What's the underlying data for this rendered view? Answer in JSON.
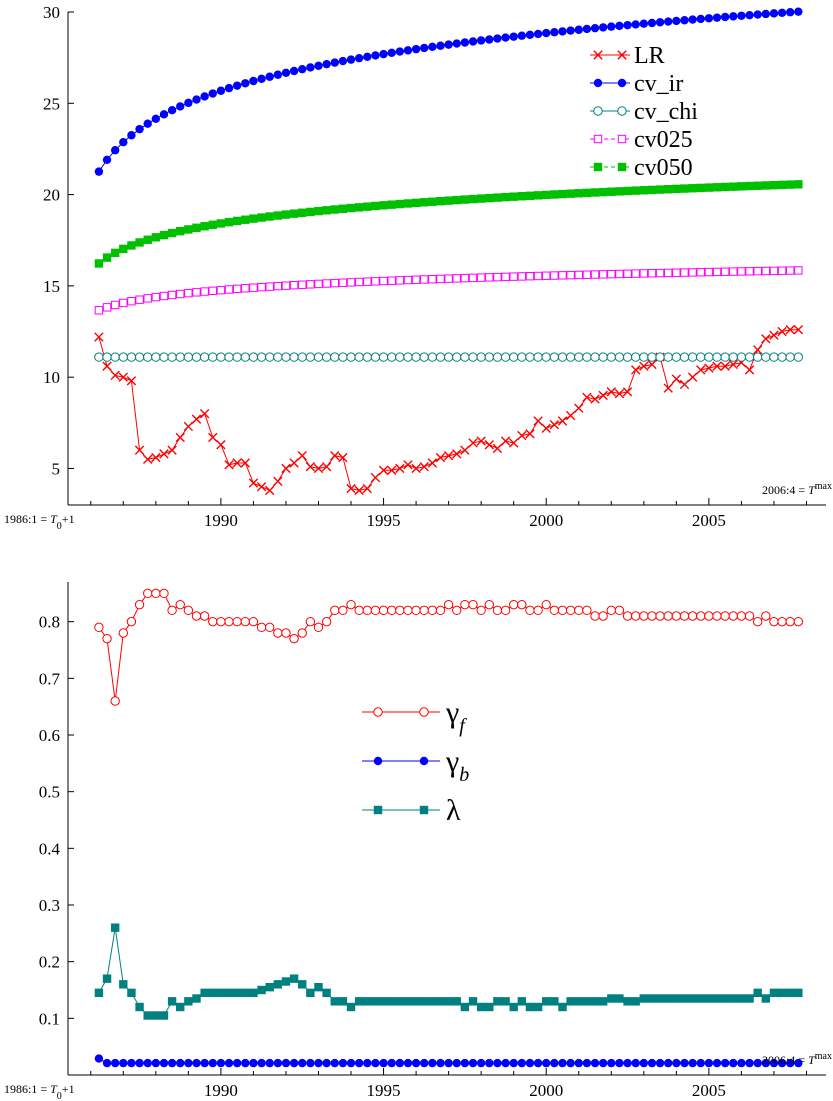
{
  "chart_data": [
    {
      "type": "line",
      "title": "",
      "xlabel": "",
      "ylabel": "",
      "xlim": [
        1985.3,
        2008.6
      ],
      "ylim": [
        3,
        30
      ],
      "yticks": [
        "5",
        "10",
        "15",
        "20",
        "25",
        "30"
      ],
      "xticks": [
        "1990",
        "1995",
        "2000",
        "2005"
      ],
      "annotations": {
        "start": {
          "pre": "1986:1 = ",
          "T": "T",
          "sub": "0",
          "post": "+1"
        },
        "end": {
          "pre": "2006:4 = ",
          "T": "T",
          "sup": "max"
        }
      },
      "legend_position": "top-right",
      "x": {
        "start": 1986.25,
        "step": 0.25,
        "count": 87
      },
      "series": [
        {
          "name": "LR",
          "color": "#ff0000",
          "marker": "x",
          "line": "solid",
          "values": [
            12.2,
            10.6,
            10.1,
            10.0,
            9.8,
            6.0,
            5.5,
            5.6,
            5.8,
            6.0,
            6.7,
            7.3,
            7.7,
            8.0,
            6.7,
            6.3,
            5.2,
            5.3,
            5.3,
            4.2,
            4.0,
            3.8,
            4.3,
            5.0,
            5.3,
            5.7,
            5.1,
            5.0,
            5.1,
            5.7,
            5.6,
            3.9,
            3.8,
            3.9,
            4.5,
            4.9,
            4.9,
            5.0,
            5.2,
            5.0,
            5.1,
            5.3,
            5.6,
            5.7,
            5.8,
            6.0,
            6.4,
            6.5,
            6.3,
            6.1,
            6.5,
            6.4,
            6.8,
            6.9,
            7.6,
            7.2,
            7.4,
            7.6,
            7.9,
            8.3,
            8.9,
            8.8,
            9.0,
            9.2,
            9.1,
            9.2,
            10.4,
            10.6,
            10.7,
            11.1,
            9.4,
            9.9,
            9.6,
            10.0,
            10.4,
            10.5,
            10.6,
            10.6,
            10.7,
            10.8,
            10.4,
            11.5,
            12.1,
            12.3,
            12.5,
            12.6,
            12.6
          ]
        },
        {
          "name": "cv_ir",
          "color": "#0000ff",
          "marker": "filled-circle",
          "line": "solid",
          "curve": {
            "form": "a + b*ln(x - c)",
            "a": 21.4,
            "b": 2.77,
            "c": 1985.3
          }
        },
        {
          "name": "cv_chi",
          "color": "#008080",
          "marker": "open-circle",
          "line": "solid",
          "constant": 11.1
        },
        {
          "name": "cv025",
          "color": "#ff00ff",
          "marker": "open-square",
          "line": "dashed",
          "curve": {
            "form": "a + b*ln(x - c)",
            "a": 13.7,
            "b": 0.69,
            "c": 1985.3
          }
        },
        {
          "name": "cv050",
          "color": "#00c000",
          "marker": "filled-square",
          "line": "dashed",
          "curve": {
            "form": "a + b*ln(x - c)",
            "a": 16.3,
            "b": 1.37,
            "c": 1985.3
          }
        }
      ]
    },
    {
      "type": "line",
      "title": "",
      "xlabel": "",
      "ylabel": "",
      "xlim": [
        1985.3,
        2008.6
      ],
      "ylim": [
        0.0,
        0.87
      ],
      "yticks": [
        "0.1",
        "0.2",
        "0.3",
        "0.4",
        "0.5",
        "0.6",
        "0.7",
        "0.8"
      ],
      "xticks": [
        "1990",
        "1995",
        "2000",
        "2005"
      ],
      "annotations": {
        "start": {
          "pre": "1986:1 = ",
          "T": "T",
          "sub": "0",
          "post": "+1"
        },
        "end": {
          "pre": "2006:4 = ",
          "T": "T",
          "sup": "max"
        }
      },
      "legend_position": "center",
      "x": {
        "start": 1986.25,
        "step": 0.25,
        "count": 87
      },
      "series": [
        {
          "name": "γf",
          "legend": {
            "greek": "γ",
            "sub": "f"
          },
          "color": "#ff0000",
          "marker": "open-circle",
          "line": "solid",
          "values": [
            0.79,
            0.77,
            0.66,
            0.78,
            0.8,
            0.83,
            0.85,
            0.85,
            0.85,
            0.82,
            0.83,
            0.82,
            0.81,
            0.81,
            0.8,
            0.8,
            0.8,
            0.8,
            0.8,
            0.8,
            0.79,
            0.79,
            0.78,
            0.78,
            0.77,
            0.78,
            0.8,
            0.79,
            0.8,
            0.82,
            0.82,
            0.83,
            0.82,
            0.82,
            0.82,
            0.82,
            0.82,
            0.82,
            0.82,
            0.82,
            0.82,
            0.82,
            0.82,
            0.83,
            0.82,
            0.83,
            0.83,
            0.82,
            0.83,
            0.82,
            0.82,
            0.83,
            0.83,
            0.82,
            0.82,
            0.83,
            0.82,
            0.82,
            0.82,
            0.82,
            0.82,
            0.81,
            0.81,
            0.82,
            0.82,
            0.81,
            0.81,
            0.81,
            0.81,
            0.81,
            0.81,
            0.81,
            0.81,
            0.81,
            0.81,
            0.81,
            0.81,
            0.81,
            0.81,
            0.81,
            0.81,
            0.8,
            0.81,
            0.8,
            0.8,
            0.8,
            0.8
          ]
        },
        {
          "name": "γb",
          "legend": {
            "greek": "γ",
            "sub": "b"
          },
          "color": "#0000ff",
          "marker": "filled-circle",
          "line": "solid",
          "values": [
            0.029,
            0.021,
            0.021,
            0.021,
            0.021,
            0.021,
            0.021,
            0.021,
            0.021,
            0.021,
            0.021,
            0.021,
            0.021,
            0.021,
            0.021,
            0.021,
            0.021,
            0.021,
            0.021,
            0.021,
            0.021,
            0.021,
            0.021,
            0.021,
            0.021,
            0.021,
            0.021,
            0.021,
            0.021,
            0.021,
            0.021,
            0.021,
            0.021,
            0.021,
            0.021,
            0.021,
            0.021,
            0.021,
            0.021,
            0.021,
            0.021,
            0.021,
            0.021,
            0.021,
            0.021,
            0.021,
            0.021,
            0.021,
            0.021,
            0.021,
            0.021,
            0.021,
            0.021,
            0.021,
            0.021,
            0.021,
            0.021,
            0.021,
            0.021,
            0.021,
            0.021,
            0.021,
            0.021,
            0.021,
            0.021,
            0.021,
            0.021,
            0.021,
            0.021,
            0.021,
            0.021,
            0.021,
            0.021,
            0.021,
            0.021,
            0.021,
            0.021,
            0.021,
            0.021,
            0.021,
            0.021,
            0.021,
            0.021,
            0.021,
            0.021,
            0.021,
            0.021
          ]
        },
        {
          "name": "λ",
          "legend": {
            "greek": "λ",
            "sub": ""
          },
          "color": "#008080",
          "marker": "filled-square",
          "line": "solid",
          "values": [
            0.145,
            0.17,
            0.26,
            0.16,
            0.145,
            0.12,
            0.105,
            0.105,
            0.105,
            0.13,
            0.12,
            0.13,
            0.135,
            0.145,
            0.145,
            0.145,
            0.145,
            0.145,
            0.145,
            0.145,
            0.15,
            0.155,
            0.16,
            0.165,
            0.17,
            0.16,
            0.145,
            0.155,
            0.145,
            0.13,
            0.13,
            0.12,
            0.13,
            0.13,
            0.13,
            0.13,
            0.13,
            0.13,
            0.13,
            0.13,
            0.13,
            0.13,
            0.13,
            0.13,
            0.13,
            0.12,
            0.13,
            0.12,
            0.12,
            0.13,
            0.13,
            0.12,
            0.13,
            0.12,
            0.12,
            0.13,
            0.13,
            0.12,
            0.13,
            0.13,
            0.13,
            0.13,
            0.13,
            0.135,
            0.135,
            0.13,
            0.13,
            0.135,
            0.135,
            0.135,
            0.135,
            0.135,
            0.135,
            0.135,
            0.135,
            0.135,
            0.135,
            0.135,
            0.135,
            0.135,
            0.135,
            0.145,
            0.135,
            0.145,
            0.145,
            0.145,
            0.145
          ]
        }
      ]
    }
  ]
}
